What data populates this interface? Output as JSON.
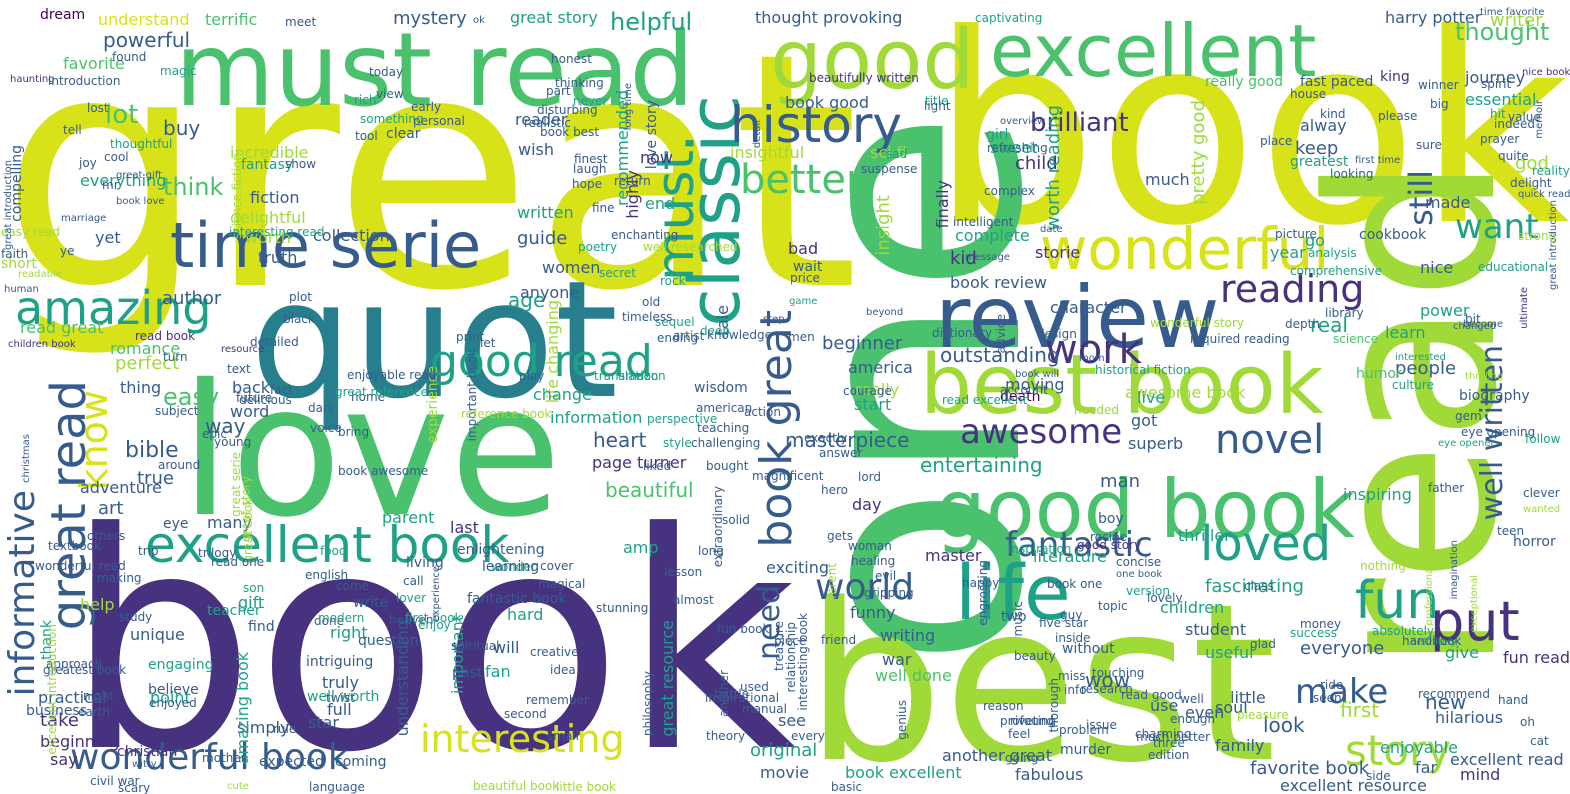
{
  "palette": {
    "yellow": "#d8e219",
    "lime": "#a0da39",
    "green": "#4ac16d",
    "teal": "#1fa187",
    "cyan": "#277f8e",
    "blue": "#365c8d",
    "indigo": "#46327e",
    "purple": "#440154"
  },
  "words": {
    "great": "great",
    "book_big": "book",
    "book_top": "book",
    "read_big": "read",
    "one": "one",
    "best": "best",
    "love": "love",
    "quot": "quot",
    "must_read": "must read",
    "good": "good",
    "excellent": "excellent",
    "review": "review",
    "best_book": "best book",
    "good_book": "good book",
    "life": "life",
    "classic": "classic",
    "time_serie": "time serie",
    "wonderful": "wonderful",
    "excellent_book": "excellent book",
    "great_read": "great read",
    "history": "history",
    "good_read": "good read",
    "amazing": "amazing",
    "interesting": "interesting",
    "wonderful_book": "wonderful book",
    "story": "story",
    "put": "put",
    "fun": "fun",
    "loved": "loved",
    "work": "work",
    "novel": "novel",
    "must": "must",
    "book_great": "book great",
    "informative": "informative",
    "well_written": "well written",
    "better": "better",
    "still": "still",
    "awesome": "awesome",
    "fantastic": "fantastic",
    "world": "world",
    "reading": "reading",
    "want": "want",
    "make": "make",
    "know": "know",
    "need": "need",
    "brilliant": "brilliant",
    "helpful": "helpful",
    "great_story": "great story",
    "harry_potter": "harry potter",
    "thought": "thought",
    "thought_provoking": "thought provoking",
    "powerful": "powerful",
    "understand": "understand",
    "terrific": "terrific",
    "mystery": "mystery",
    "dream": "dream",
    "meet": "meet",
    "captivating": "captivating",
    "writer": "writer",
    "time_favorite": "time favorite",
    "magic": "magic",
    "ok": "ok",
    "king": "king",
    "journey": "journey",
    "essential": "essential",
    "lot": "lot",
    "favorite": "favorite",
    "buy": "buy",
    "think": "think",
    "incredible": "incredible",
    "everything": "everything",
    "fiction": "fiction",
    "delightful": "delightful",
    "worth": "worth",
    "truth": "truth",
    "collection": "collection",
    "yet": "yet",
    "author": "author",
    "perfect": "perfect",
    "age": "age",
    "easy": "easy",
    "bible": "bible",
    "true": "true",
    "heart": "heart",
    "beautiful": "beautiful",
    "page_turner": "page turner",
    "masterpiece": "masterpiece",
    "entertaining": "entertaining",
    "outstanding": "outstanding",
    "beginner": "beginner",
    "people": "people",
    "real": "real",
    "learn": "learn",
    "character": "character",
    "kid": "kid",
    "book_review": "book review",
    "complete": "complete",
    "insight": "insight",
    "storie": "storie",
    "finally": "finally",
    "nice": "nice",
    "made": "made",
    "god": "god",
    "child": "child",
    "sweet": "sweet",
    "much": "much",
    "keep": "keep",
    "alway": "alway",
    "greatest": "greatest",
    "pretty_good": "pretty good",
    "worth_reading": "worth reading",
    "year": "year",
    "go": "go",
    "really_good": "really good",
    "fast_paced": "fast paced",
    "book_good": "book good",
    "recommended": "recommended",
    "reader": "reader",
    "wish": "wish",
    "love_story": "love story",
    "insightful": "insightful",
    "sci_fi": "sci fi",
    "now": "now",
    "guide": "guide",
    "women": "women",
    "highly": "highly",
    "end": "end",
    "written": "written",
    "anyone": "anyone",
    "life_changing": "life changing",
    "tale": "tale",
    "information": "information",
    "change": "change",
    "amp": "amp",
    "fascinating": "fascinating",
    "children": "children",
    "student": "student",
    "useful": "useful",
    "everyone": "everyone",
    "first": "first",
    "new": "new",
    "give": "give",
    "hilarious": "hilarious",
    "little": "little",
    "even": "even",
    "wow": "wow",
    "look": "look",
    "family": "family",
    "soul": "soul",
    "use": "use",
    "fun_read": "fun read",
    "excellent_read": "excellent read",
    "enjoyable": "enjoyable",
    "far": "far",
    "mind": "mind",
    "favorite_book": "favorite book",
    "excellent_resource": "excellent resource",
    "fabulous": "fabulous",
    "another_great": "another great",
    "book_excellent": "book excellent",
    "movie": "movie",
    "original": "original",
    "see": "see",
    "great_resource": "great resource",
    "important": "important",
    "understanding": "understanding",
    "will": "will",
    "fan": "fan",
    "hard": "hard",
    "funny": "funny",
    "exciting": "exciting",
    "writing": "writing",
    "war": "war",
    "well_done": "well done",
    "right": "right",
    "truly": "truly",
    "full": "full",
    "intriguing": "intriguing",
    "well_worth": "well worth",
    "engaging": "engaging",
    "unique": "unique",
    "point": "point",
    "practical": "practical",
    "believe": "believe",
    "take": "take",
    "simply": "simply",
    "star": "star",
    "beginning": "beginning",
    "say": "say",
    "amazing_book": "amazing book",
    "gift": "gift",
    "find": "find",
    "help": "help",
    "thank": "thank",
    "art": "art",
    "adventure": "adventure",
    "many": "many",
    "way": "way",
    "word": "word",
    "back": "back",
    "thing": "thing",
    "romance": "romance",
    "read_book": "read book",
    "read_great": "read great",
    "awesome_book": "awesome book",
    "live": "live",
    "got": "got",
    "superb": "superb",
    "inspiring": "inspiring",
    "man": "man",
    "thriller": "thriller",
    "literature": "literature",
    "master": "master",
    "last": "last",
    "parent": "parent",
    "day": "day",
    "experience": "experience",
    "moving": "moving",
    "america": "america",
    "really": "really",
    "start": "start",
    "cookbook": "cookbook",
    "power": "power",
    "bad": "bad",
    "wait": "wait",
    "short": "short",
    "easy_read": "easy read",
    "faith": "faith",
    "secret": "secret",
    "poetry": "poetry",
    "well_researched": "well researched",
    "rock": "rock",
    "ending": "ending",
    "sequel": "sequel",
    "deep": "deep",
    "fantasy": "fantasy",
    "science_fiction": "science fiction",
    "compelling": "compelling",
    "reality": "reality",
    "educational": "educational",
    "comprehensive": "comprehensive",
    "analysis": "analysis",
    "picture": "picture",
    "clear": "clear",
    "kind": "kind",
    "looking": "looking",
    "place": "place",
    "detail": "detail",
    "hope": "hope",
    "laugh": "laugh",
    "today": "today",
    "view": "view",
    "found": "found",
    "rich": "rich",
    "something": "something",
    "introduction": "introduction",
    "haunting": "haunting",
    "lost": "lost",
    "tell": "tell",
    "thoughtful": "thoughtful",
    "tool": "tool",
    "honest": "honest",
    "thinking": "thinking",
    "never": "never",
    "beautifully_written": "beautifully written",
    "title": "title",
    "light": "light",
    "overview": "overview",
    "girl": "girl",
    "first_time": "first time",
    "winner": "winner",
    "big": "big",
    "memoir": "memoir",
    "hit": "hit",
    "nice_book": "nice book",
    "quick_read": "quick read",
    "ultimate": "ultimate",
    "great_introduction": "great introduction",
    "library": "library",
    "science": "science",
    "sad": "sad",
    "humor": "humor",
    "interested": "interested",
    "thrilling": "thrilling",
    "culture": "culture",
    "biography": "biography",
    "gem": "gem",
    "eye_opening": "eye opening",
    "eye_opener": "eye opener",
    "follow": "follow",
    "clever": "clever",
    "wanted": "wanted",
    "teen": "teen",
    "horror": "horror",
    "father": "father",
    "imagination": "imagination",
    "exceptional": "exceptional",
    "professional": "professional",
    "nothing": "nothing",
    "absolutely": "absolutely",
    "definitely": "definitely",
    "handbook": "handbook",
    "money": "money",
    "success": "success",
    "glad": "glad",
    "class": "class",
    "inspiration": "inspiration",
    "lovely": "lovely",
    "topic": "topic",
    "guy": "guy",
    "happy": "happy",
    "two": "two",
    "boy": "boy",
    "recipe": "recipe",
    "good_story": "good story",
    "version": "version",
    "solid": "solid",
    "long": "long",
    "wonder": "wonder",
    "lesson": "lesson",
    "enlightening": "enlightening",
    "learning": "learning",
    "living": "living",
    "come": "come",
    "write": "write",
    "done": "done",
    "modern": "modern",
    "call": "call",
    "lover": "lover",
    "heaven": "heaven",
    "fantastic_book": "fantastic book",
    "first_book": "first book",
    "enjoy": "enjoy",
    "question": "question",
    "past": "past",
    "spiritual": "spiritual",
    "night": "night",
    "earth": "earth",
    "son": "son",
    "teacher": "teacher",
    "christian": "christian",
    "mother": "mother",
    "expected": "expected",
    "coming": "coming",
    "language": "language",
    "beautiful_book": "beautiful book",
    "little_book": "little book",
    "rule": "rule",
    "twist": "twist",
    "business": "business",
    "enjoyed": "enjoyed",
    "approach": "approach",
    "witty": "witty",
    "scary": "scary",
    "cute": "cute",
    "study": "study",
    "making": "making",
    "trilogy": "trilogy",
    "others": "others",
    "trip": "trip",
    "eye": "eye",
    "food": "food",
    "english": "english",
    "text": "text",
    "fact": "fact",
    "dark": "dark",
    "voice": "voice",
    "home": "home",
    "death": "death",
    "account": "account",
    "needed": "needed",
    "wisdom": "wisdom",
    "action": "action",
    "perspective": "perspective",
    "style": "style",
    "liked": "liked",
    "amazon": "amazon",
    "around": "around",
    "subject": "subject",
    "future": "future",
    "detailed": "detailed",
    "resource": "resource",
    "children_book": "children book",
    "plot": "plot",
    "black": "black",
    "print": "print",
    "turn": "turn",
    "let": "let",
    "play": "play",
    "translation": "translation",
    "knowledge": "knowledge",
    "men": "men",
    "game": "game",
    "beyond": "beyond",
    "dictionary": "dictionary",
    "design": "design",
    "book_will": "book will",
    "historical_fiction": "historical fiction",
    "read_excellent": "read excellent",
    "mom": "mom",
    "changed": "changed",
    "become": "become",
    "bit": "bit",
    "advice": "advice",
    "depth": "depth",
    "required_reading": "required reading",
    "message": "message",
    "date": "date",
    "step": "step",
    "price": "price",
    "old": "old",
    "artist": "artist",
    "important_book": "important book",
    "enjoyable_read": "enjoyable read",
    "great_reference": "great reference",
    "reference_book": "reference book",
    "interesting_read": "interesting read",
    "human": "human",
    "readable": "readable",
    "ye": "ye",
    "marriage": "marriage",
    "book_love": "book love",
    "great_gift": "great gift",
    "joy": "joy",
    "cool": "cool",
    "mr": "mr",
    "show": "show",
    "early": "early",
    "personal": "personal",
    "part": "part",
    "disturbing": "disturbing",
    "long_time": "long time",
    "book_best": "book best",
    "realistic": "realistic",
    "finest": "finest",
    "return": "return",
    "suspense": "suspense",
    "refreshing": "refreshing",
    "complex": "complex",
    "intelligent": "intelligent",
    "house": "house",
    "please": "please",
    "spirit": "spirit",
    "prayer": "prayer",
    "quite": "quite",
    "delight": "delight",
    "strong": "strong",
    "value": "value",
    "indeed": "indeed",
    "sure": "sure",
    "enchanting": "enchanting",
    "fine": "fine",
    "timeless": "timeless",
    "wonderful_story": "wonderful story",
    "great_serie": "great serie",
    "great_story_2": "great story",
    "great_book": "great book",
    "delicious": "delicious",
    "epic": "epic",
    "young": "young",
    "bring": "bring",
    "christmas": "christmas",
    "magical": "magical",
    "cover": "cover",
    "stunning": "stunning",
    "creative": "creative",
    "idea": "idea",
    "remember": "remember",
    "second": "second",
    "small": "small",
    "philosophy": "philosophy",
    "manual": "manual",
    "theory": "theory",
    "gripping": "gripping",
    "evil": "evil",
    "genius": "genius",
    "hand": "hand",
    "oh": "oh",
    "cat": "cat",
    "seen": "seen",
    "ride": "ride",
    "recommend": "recommend",
    "side": "side",
    "pleasure": "pleasure",
    "five_star": "five star",
    "book_one": "book one",
    "one_book": "one book",
    "concise": "concise",
    "inside": "inside",
    "without": "without",
    "beauty": "beauty",
    "touching": "touching",
    "research": "research",
    "miss": "miss",
    "info": "info",
    "read_good": "read good",
    "well": "well",
    "enough": "enough",
    "charming": "charming",
    "issue": "issue",
    "problem": "problem",
    "feel": "feel",
    "murder": "murder",
    "much_better": "much better",
    "three": "three",
    "going": "going",
    "edition": "edition",
    "thorough": "thorough",
    "piece": "piece",
    "battle": "battle",
    "used": "used",
    "every": "every",
    "interesting_book": "interesting book",
    "inspirational": "inspirational",
    "treasure": "treasure",
    "relationship": "relationship",
    "different": "different",
    "woman": "woman",
    "healing": "healing",
    "gets": "gets",
    "extraordinary": "extraordinary",
    "hero": "hero",
    "exactly": "exactly",
    "answer": "answer",
    "lord": "lord",
    "magnificent": "magnificent",
    "bought": "bought",
    "american": "american",
    "teaching": "teaching",
    "challenging": "challenging",
    "another": "another",
    "friend": "friend",
    "almost": "almost",
    "fun_book": "fun book",
    "wonderful_read": "wonderful read",
    "civil_war": "civil war",
    "textbook": "textbook",
    "greatest_book": "greatest book",
    "excellent_introduction": "excellent introduction",
    "read_one": "read one",
    "riveting": "riveting",
    "engrossing": "engrossing",
    "music": "music",
    "reason": "reason",
    "profound": "profound",
    "basic": "basic",
    "book_awesome": "book awesome",
    "courage": "courage",
    "experience_2": "experience",
    "great_introduction_2": "great introduction"
  }
}
